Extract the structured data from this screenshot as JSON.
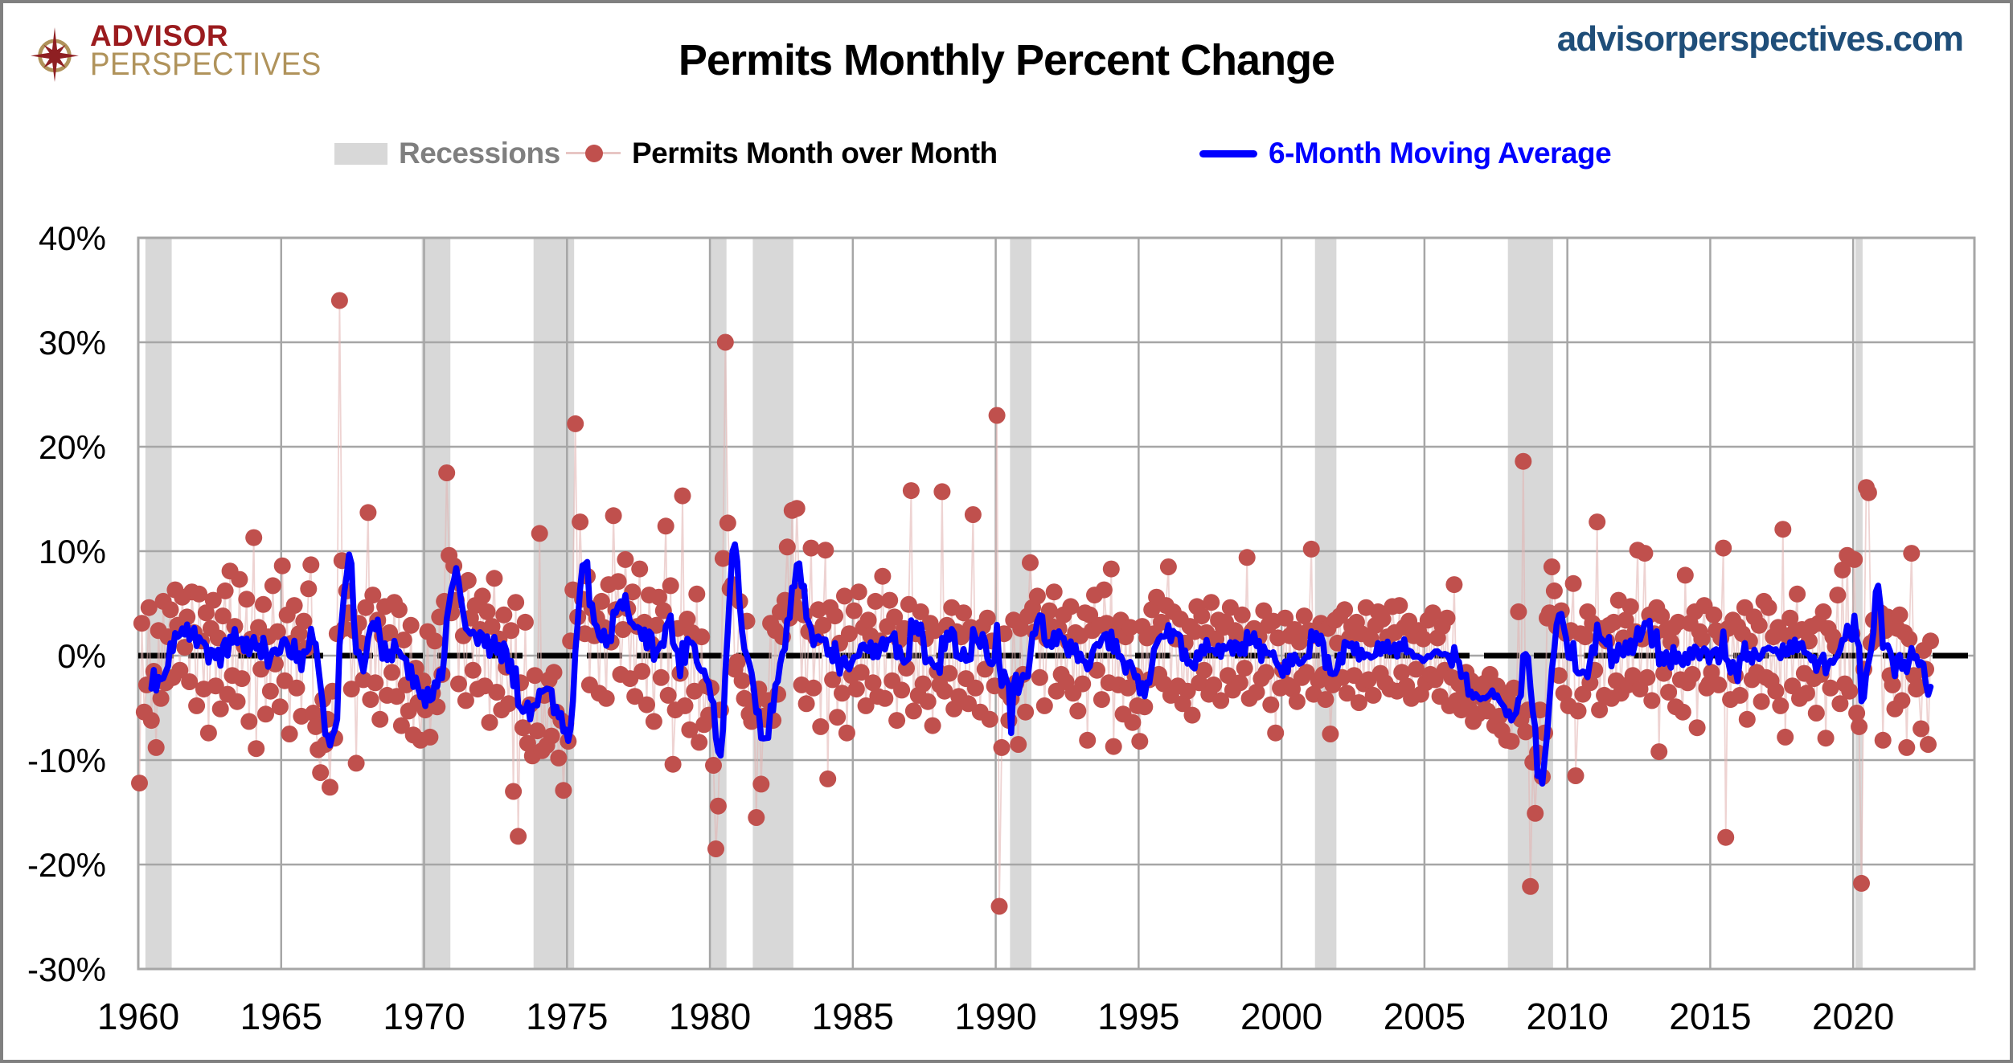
{
  "header": {
    "logo": {
      "line1": "ADVISOR",
      "line2": "PERSPECTIVES",
      "icon": "compass-star-icon",
      "red": "#9B1B1E",
      "gold": "#B0935B"
    },
    "title": "Permits Monthly Percent Change",
    "website": "advisorperspectives.com",
    "website_color": "#1F4E79"
  },
  "legend": {
    "items": [
      {
        "label": "Recessions",
        "swatch": "box",
        "color": "#D8D8D8",
        "text_color": "#7F7F7F"
      },
      {
        "label": "Permits Month over Month",
        "swatch": "dot-line",
        "color": "#C0504D",
        "line_color": "#E8C6C4",
        "text_color": "#C0504D"
      },
      {
        "label": "6-Month Moving Average",
        "swatch": "line",
        "color": "#0000FF",
        "text_color": "#0000FF"
      }
    ]
  },
  "chart_data": {
    "type": "scatter",
    "title": "Permits Monthly Percent Change",
    "x_axis": {
      "min": 1960,
      "max": 2024.3,
      "ticks": [
        1960,
        1965,
        1970,
        1975,
        1980,
        1985,
        1990,
        1995,
        2000,
        2005,
        2010,
        2015,
        2020
      ],
      "gridlines": true
    },
    "y_axis": {
      "min": -30,
      "max": 40,
      "unit": "%",
      "tick_values": [
        40,
        30,
        20,
        10,
        0,
        -10,
        -20,
        -30
      ],
      "tick_labels": [
        "40%",
        "30%",
        "20%",
        "10%",
        "0%",
        "-10%",
        "-20%",
        "-30%"
      ],
      "gridlines": true
    },
    "zero_line": {
      "value": 0,
      "style": "dashed",
      "color": "#000000"
    },
    "grid_color": "#A6A6A6",
    "recessions": {
      "label": "Recessions",
      "color": "#D8D8D8",
      "periods": [
        [
          1960.25,
          1961.17
        ],
        [
          1969.92,
          1970.92
        ],
        [
          1973.83,
          1975.25
        ],
        [
          1980.0,
          1980.58
        ],
        [
          1981.5,
          1982.92
        ],
        [
          1990.5,
          1991.25
        ],
        [
          2001.17,
          2001.92
        ],
        [
          2007.92,
          2009.5
        ],
        [
          2020.08,
          2020.33
        ]
      ]
    },
    "series": [
      {
        "name": "Permits Month over Month",
        "type": "scatter-with-thin-line",
        "marker_color": "#C0504D",
        "connector_color": "#E3B6B4",
        "frequency": "monthly",
        "start": "1960-01",
        "end": "2022-09",
        "values_by_year": {
          "1960": [
            -12.2,
            3.1,
            -5.4,
            -2.8,
            4.6,
            -6.2,
            -1.5,
            -8.8,
            2.4,
            -4.1,
            5.2,
            -2.6
          ],
          "1961": [
            1.8,
            4.4,
            -2.1,
            6.3,
            2.9,
            -1.4,
            5.6,
            0.8,
            3.7,
            -2.5,
            6.1,
            2.2
          ],
          "1962": [
            -4.8,
            5.9,
            1.4,
            -3.2,
            4.1,
            -7.4,
            2.6,
            5.3,
            -2.9,
            1.7,
            -5.1,
            3.8
          ],
          "1963": [
            6.2,
            -3.7,
            8.1,
            -1.9,
            2.8,
            -4.4,
            7.3,
            -2.2,
            0.9,
            5.4,
            -6.3,
            1.6
          ],
          "1964": [
            11.3,
            -8.9,
            2.7,
            -1.3,
            4.9,
            -5.6,
            1.8,
            -3.4,
            6.7,
            -0.8,
            2.3,
            -4.9
          ],
          "1965": [
            8.6,
            -2.4,
            3.9,
            -7.5,
            1.2,
            4.8,
            -3.1,
            2.1,
            -5.8,
            3.3,
            0.7,
            6.4
          ],
          "1966": [
            8.7,
            -5.5,
            -6.8,
            -9.0,
            -11.2,
            -4.2,
            -8.5,
            -6.1,
            -12.6,
            -3.4,
            -7.9,
            2.1
          ],
          "1967": [
            34.0,
            9.1,
            2.6,
            6.2,
            4.1,
            -3.2,
            2.4,
            -10.3,
            3.1,
            1.2,
            -2.3,
            4.6
          ],
          "1968": [
            13.7,
            -4.2,
            5.8,
            -2.6,
            3.4,
            -6.1,
            1.9,
            4.7,
            -3.8,
            2.2,
            -1.6,
            5.1
          ],
          "1969": [
            -3.9,
            4.4,
            -6.7,
            1.5,
            -2.8,
            -5.3,
            2.9,
            -7.6,
            -1.2,
            -4.5,
            -8.1,
            -2.4
          ],
          "1970": [
            -5.2,
            2.3,
            -7.8,
            -3.6,
            1.4,
            -4.9,
            3.7,
            -1.8,
            5.2,
            17.5,
            9.6,
            4.1
          ],
          "1971": [
            8.6,
            5.3,
            -2.7,
            6.8,
            1.9,
            -4.3,
            7.2,
            3.6,
            -1.4,
            4.8,
            -3.2,
            2.5
          ],
          "1972": [
            5.7,
            -2.9,
            4.2,
            -6.4,
            2.8,
            7.4,
            -3.5,
            1.6,
            -5.2,
            3.9,
            -1.1,
            -4.6
          ],
          "1973": [
            2.4,
            -13.0,
            5.1,
            -17.3,
            -2.6,
            -6.9,
            3.2,
            -8.4,
            -4.7,
            -9.6,
            -1.9,
            -7.2
          ],
          "1974": [
            11.7,
            -9.1,
            -3.8,
            -8.6,
            -2.3,
            -7.7,
            -1.6,
            -5.4,
            -9.8,
            -6.2,
            -12.9,
            -6.5
          ],
          "1975": [
            -8.2,
            1.4,
            6.3,
            22.2,
            3.7,
            12.8,
            5.4,
            2.1,
            7.6,
            -2.8,
            4.5,
            1.9
          ],
          "1976": [
            3.6,
            -3.6,
            5.2,
            2.7,
            -4.1,
            6.8,
            1.3,
            13.4,
            4.4,
            7.1,
            -1.8,
            2.5
          ],
          "1977": [
            9.2,
            4.5,
            -2.2,
            6.1,
            -3.9,
            2.8,
            8.3,
            -1.5,
            3.2,
            -4.7,
            5.8,
            1.1
          ],
          "1978": [
            -6.3,
            2.9,
            5.6,
            -2.1,
            4.3,
            12.4,
            -3.8,
            6.7,
            -10.4,
            -5.2,
            2.6,
            -1.7
          ],
          "1979": [
            15.3,
            -4.8,
            3.5,
            -7.1,
            2.2,
            -3.4,
            5.9,
            -8.3,
            1.8,
            -6.6,
            -2.9,
            -5.7
          ],
          "1980": [
            -3.1,
            -10.5,
            -18.5,
            -14.4,
            -5.2,
            9.3,
            30.0,
            12.7,
            6.4,
            6.8,
            -1.3,
            -0.6
          ],
          "1981": [
            5.2,
            -2.4,
            -4.1,
            3.3,
            -5.6,
            -6.3,
            -4.5,
            -15.5,
            -3.2,
            -12.3,
            -5.8,
            -6.1
          ],
          "1982": [
            -4.3,
            3.1,
            -6.2,
            2.4,
            -3.7,
            4.2,
            1.8,
            5.3,
            10.4,
            3.6,
            13.9,
            4.8
          ],
          "1983": [
            14.1,
            6.2,
            -2.8,
            3.9,
            -4.6,
            2.3,
            10.3,
            -3.1,
            1.7,
            4.4,
            -6.8,
            2.9
          ],
          "1984": [
            10.1,
            -11.8,
            4.6,
            -2.3,
            3.8,
            -5.9,
            1.2,
            -3.6,
            5.7,
            -7.4,
            2.1,
            -1.9
          ],
          "1985": [
            4.3,
            -3.2,
            6.1,
            -1.6,
            2.7,
            -4.8,
            3.4,
            1.9,
            -2.6,
            5.2,
            -3.9,
            1.4
          ],
          "1986": [
            7.6,
            -4.1,
            2.8,
            5.3,
            -2.4,
            3.7,
            -6.2,
            1.5,
            -3.3,
            2.6,
            -1.2,
            4.9
          ],
          "1987": [
            15.8,
            -5.3,
            2.1,
            -3.8,
            4.2,
            -2.7,
            1.6,
            -4.4,
            3.1,
            -6.7,
            2.4,
            -1.5
          ],
          "1988": [
            -2.8,
            15.7,
            -3.4,
            2.9,
            -1.7,
            4.6,
            -5.1,
            2.3,
            -3.9,
            1.8,
            4.1,
            -2.2
          ],
          "1989": [
            -4.6,
            2.7,
            13.5,
            -3.1,
            1.9,
            -5.4,
            2.8,
            -1.3,
            3.6,
            -6.1,
            1.4,
            -2.9
          ],
          "1990": [
            23.0,
            -24.0,
            -8.8,
            2.1,
            -3.5,
            -6.2,
            -4.1,
            3.4,
            -2.6,
            -8.5,
            2.6,
            -1.8
          ],
          "1991": [
            -5.4,
            3.8,
            8.9,
            4.6,
            2.3,
            5.7,
            -2.1,
            3.2,
            -4.8,
            1.6,
            4.3,
            2.8
          ],
          "1992": [
            6.1,
            -3.4,
            2.6,
            -1.8,
            3.9,
            -2.5,
            1.3,
            4.7,
            -3.6,
            2.2,
            -5.3,
            1.9
          ],
          "1993": [
            -2.7,
            4.1,
            -8.1,
            3.9,
            2.4,
            5.8,
            -1.4,
            2.9,
            -4.2,
            6.3,
            3.1,
            -2.6
          ],
          "1994": [
            8.3,
            -8.7,
            2.1,
            -2.8,
            3.4,
            -5.6,
            1.8,
            -3.1,
            2.7,
            -6.4,
            -1.9,
            -4.8
          ],
          "1995": [
            -8.2,
            2.8,
            -4.9,
            1.7,
            -2.3,
            4.4,
            2.1,
            5.6,
            -1.8,
            3.2,
            -2.7,
            4.8
          ],
          "1996": [
            8.5,
            -3.8,
            4.2,
            1.6,
            -2.9,
            3.5,
            -4.6,
            1.2,
            -3.4,
            2.8,
            -5.7,
            2.3
          ],
          "1997": [
            4.7,
            -2.6,
            3.8,
            -1.4,
            2.2,
            -3.7,
            5.1,
            -2.8,
            1.6,
            3.4,
            -4.3,
            2.7
          ],
          "1998": [
            3.2,
            -1.9,
            4.6,
            -3.3,
            2.4,
            1.7,
            -2.6,
            3.9,
            -1.2,
            9.4,
            -4.1,
            2.3
          ],
          "1999": [
            2.6,
            -3.5,
            1.8,
            -2.2,
            4.3,
            -1.6,
            2.9,
            -4.7,
            3.3,
            -7.4,
            1.7,
            -3.1
          ],
          "2000": [
            -1.4,
            3.6,
            -2.8,
            1.9,
            -3.2,
            2.5,
            -4.4,
            1.3,
            -2.1,
            3.8,
            -1.6,
            2.4
          ],
          "2001": [
            10.2,
            -3.7,
            1.9,
            -2.4,
            3.1,
            -1.8,
            -4.2,
            2.6,
            -7.5,
            -2.8,
            3.4,
            1.2
          ],
          "2002": [
            3.8,
            -2.1,
            4.4,
            -3.6,
            1.7,
            2.8,
            -1.9,
            3.2,
            -4.5,
            2.1,
            -2.7,
            4.6
          ],
          "2003": [
            -2.3,
            1.6,
            -3.8,
            2.9,
            4.2,
            -1.7,
            3.5,
            -2.6,
            1.8,
            -3.2,
            4.7,
            2.2
          ],
          "2004": [
            -3.4,
            4.8,
            -1.6,
            2.7,
            -2.9,
            3.3,
            -4.1,
            1.9,
            -1.3,
            2.4,
            -3.7,
            1.6
          ],
          "2005": [
            -2.6,
            3.4,
            -1.8,
            4.1,
            -2.3,
            1.7,
            -3.9,
            2.8,
            -1.4,
            3.6,
            -4.8,
            -2.1
          ],
          "2006": [
            6.8,
            -4.3,
            -2.7,
            -5.2,
            -3.8,
            -1.6,
            -4.9,
            -2.4,
            -6.3,
            -3.1,
            -5.6,
            -2.8
          ],
          "2007": [
            -4.1,
            -2.6,
            -5.3,
            -1.8,
            -3.4,
            -6.7,
            -2.9,
            -5.8,
            -7.2,
            -3.6,
            -8.1,
            -4.4
          ],
          "2008": [
            -8.2,
            -3.1,
            -5.4,
            4.2,
            -6.1,
            18.6,
            -7.3,
            -5.2,
            -22.1,
            -10.2,
            -15.1,
            -9.3
          ],
          "2009": [
            -5.2,
            -11.6,
            -7.4,
            3.6,
            4.1,
            8.5,
            6.2,
            2.8,
            -1.9,
            4.3,
            -3.6,
            2.1
          ],
          "2010": [
            -4.8,
            2.4,
            6.9,
            -11.5,
            -5.3,
            2.1,
            -3.7,
            1.8,
            4.2,
            -2.6,
            3.1,
            -1.4
          ],
          "2011": [
            12.8,
            -5.2,
            2.6,
            -3.8,
            1.4,
            2.9,
            -4.1,
            3.2,
            -2.4,
            5.3,
            -3.6,
            1.7
          ],
          "2012": [
            3.4,
            -2.8,
            4.7,
            -1.9,
            2.3,
            10.1,
            -3.2,
            1.6,
            9.8,
            -2.1,
            3.9,
            -4.3
          ],
          "2013": [
            2.1,
            4.6,
            -9.2,
            3.8,
            -1.7,
            2.4,
            -3.5,
            1.3,
            2.7,
            -4.9,
            3.2,
            -2.3
          ],
          "2014": [
            -5.4,
            7.7,
            -2.6,
            3.1,
            -1.8,
            4.2,
            -6.9,
            2.3,
            1.6,
            4.8,
            -3.1,
            -2.7
          ],
          "2015": [
            -1.6,
            3.9,
            2.4,
            -2.8,
            1.7,
            10.3,
            -17.4,
            2.6,
            -4.2,
            3.4,
            -1.9,
            2.8
          ],
          "2016": [
            -3.8,
            2.1,
            4.6,
            -6.1,
            1.4,
            -2.3,
            3.7,
            -1.6,
            2.9,
            -4.4,
            5.2,
            -2.1
          ],
          "2017": [
            4.6,
            -2.4,
            1.8,
            -3.4,
            2.7,
            -4.8,
            12.1,
            -7.8,
            1.9,
            3.6,
            -2.9,
            2.3
          ],
          "2018": [
            5.9,
            -4.1,
            2.5,
            -1.7,
            -3.6,
            1.4,
            2.8,
            -2.2,
            -5.5,
            3.1,
            -1.8,
            4.2
          ],
          "2019": [
            -7.9,
            2.6,
            -3.1,
            1.8,
            0.9,
            5.8,
            -4.6,
            8.2,
            -2.7,
            9.6,
            -3.4,
            2.1
          ],
          "2020": [
            9.2,
            -5.5,
            -6.8,
            -21.8,
            -1.3,
            16.1,
            15.6,
            1.2,
            3.4,
            1.6,
            2.3,
            4.1
          ],
          "2021": [
            -8.1,
            2.4,
            3.7,
            -1.9,
            -2.8,
            -5.1,
            2.6,
            3.9,
            -4.3,
            2.2,
            -8.8,
            1.6
          ],
          "2022": [
            9.8,
            -1.9,
            -3.2,
            -3.0,
            -7.0,
            0.5,
            -1.3,
            -8.5,
            1.4
          ]
        }
      },
      {
        "name": "6-Month Moving Average",
        "type": "line",
        "color": "#0000FF",
        "window": 6,
        "derived_from": "Permits Month over Month"
      }
    ]
  }
}
